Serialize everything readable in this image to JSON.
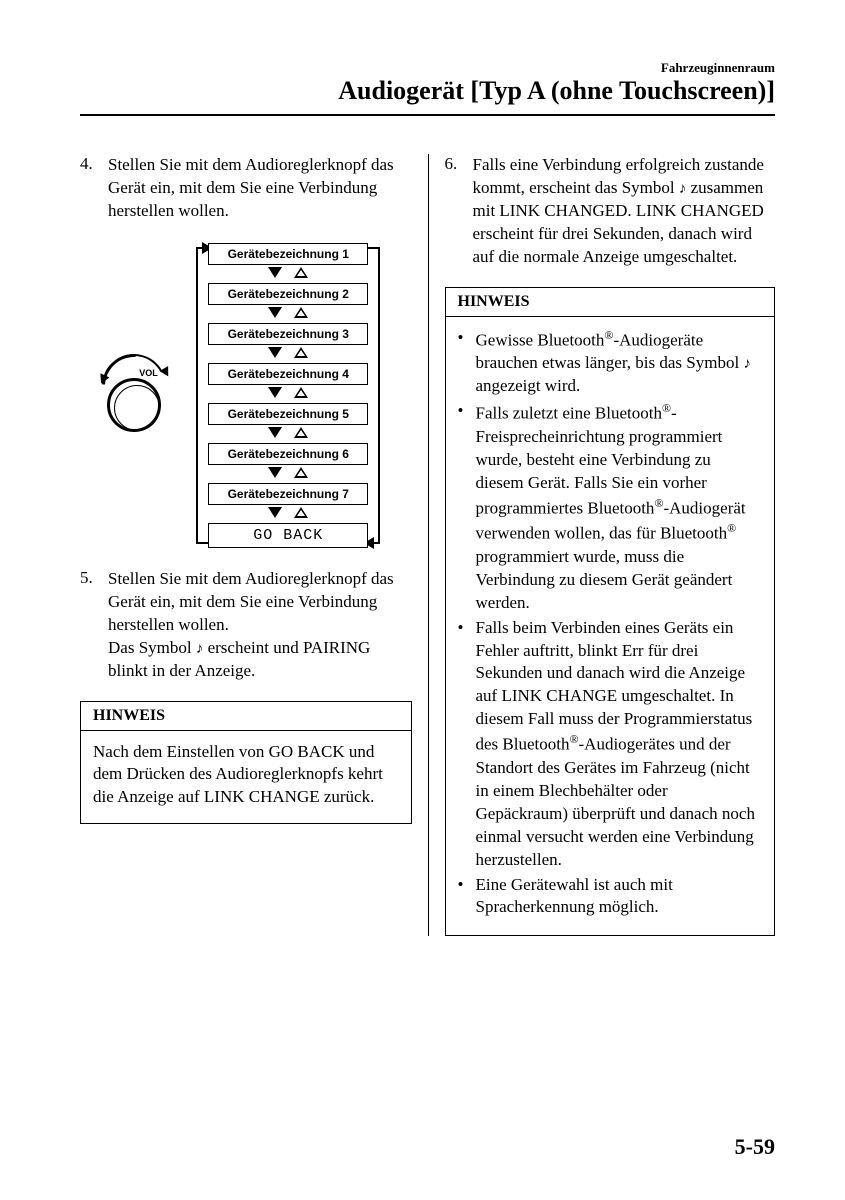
{
  "header": {
    "section": "Fahrzeuginnenraum",
    "title": "Audiogerät [Typ A (ohne Touchscreen)]"
  },
  "left": {
    "item4": {
      "num": "4.",
      "text": "Stellen Sie mit dem Audioreglerknopf das Gerät ein, mit dem Sie eine Verbindung herstellen wollen."
    },
    "diagram": {
      "vol": "VOL",
      "devices": [
        "Gerätebezeichnung 1",
        "Gerätebezeichnung 2",
        "Gerätebezeichnung 3",
        "Gerätebezeichnung 4",
        "Gerätebezeichnung 5",
        "Gerätebezeichnung 6",
        "Gerätebezeichnung 7"
      ],
      "goback": "GO BACK"
    },
    "item5": {
      "num": "5.",
      "text1": "Stellen Sie mit dem Audioreglerknopf das Gerät ein, mit dem Sie eine Verbindung herstellen wollen.",
      "text2a": "Das Symbol ",
      "text2b": " erscheint und PAIRING blinkt in der Anzeige."
    },
    "hinweis": {
      "head": "HINWEIS",
      "body": "Nach dem Einstellen von GO BACK und dem Drücken des Audioreglerknopfs kehrt die Anzeige auf LINK CHANGE zurück."
    }
  },
  "right": {
    "item6": {
      "num": "6.",
      "text1": "Falls eine Verbindung erfolgreich zustande kommt, erscheint das Symbol ",
      "text2": " zusammen mit LINK CHANGED. LINK CHANGED erscheint für drei Sekunden, danach wird auf die normale Anzeige umgeschaltet."
    },
    "hinweis": {
      "head": "HINWEIS",
      "b1a": "Gewisse Bluetooth",
      "b1b": "-Audiogeräte brauchen etwas länger, bis das Symbol ",
      "b1c": " angezeigt wird.",
      "b2a": "Falls zuletzt eine Bluetooth",
      "b2b": "-Freisprecheinrichtung programmiert wurde, besteht eine Verbindung zu diesem Gerät. Falls Sie ein vorher programmiertes Bluetooth",
      "b2c": "-Audiogerät verwenden wollen, das für Bluetooth",
      "b2d": " programmiert wurde, muss die Verbindung zu diesem Gerät geändert werden.",
      "b3a": "Falls beim Verbinden eines Geräts ein Fehler auftritt, blinkt Err für drei Sekunden und danach wird die Anzeige auf LINK CHANGE umgeschaltet. In diesem Fall muss der Programmierstatus des Bluetooth",
      "b3b": "-Audiogerätes und der Standort des Gerätes im Fahrzeug (nicht in einem Blechbehälter oder Gepäckraum) überprüft und danach noch einmal versucht werden eine Verbindung herzustellen.",
      "b4": "Eine Gerätewahl ist auch mit Spracherkennung möglich."
    }
  },
  "pagenum": "5-59"
}
